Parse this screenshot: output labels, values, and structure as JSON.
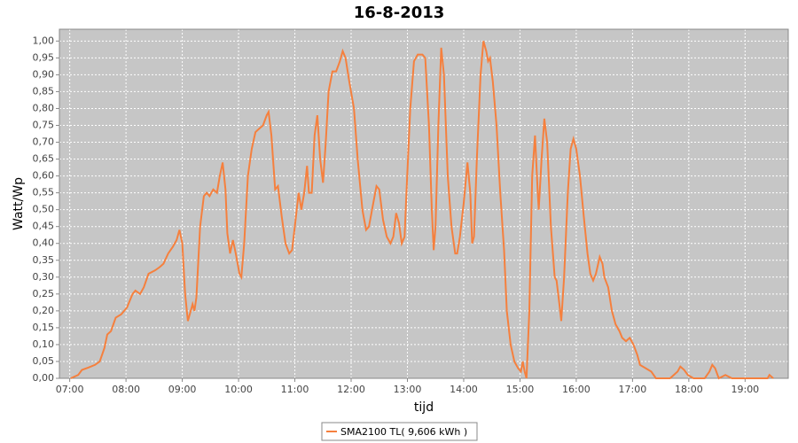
{
  "chart_data": {
    "type": "line",
    "title": "16-8-2013",
    "x_label": "tijd",
    "y_label": "Watt/Wp",
    "x": [
      "07:01",
      "07:09",
      "07:13",
      "07:20",
      "07:27",
      "07:32",
      "07:37",
      "07:40",
      "07:44",
      "07:49",
      "07:55",
      "08:01",
      "08:07",
      "08:10",
      "08:15",
      "08:19",
      "08:24",
      "08:31",
      "08:36",
      "08:40",
      "08:45",
      "08:50",
      "08:54",
      "08:57",
      "09:00",
      "09:03",
      "09:06",
      "09:09",
      "09:11",
      "09:13",
      "09:15",
      "09:19",
      "09:23",
      "09:26",
      "09:29",
      "09:33",
      "09:37",
      "09:40",
      "09:43",
      "09:46",
      "09:48",
      "09:51",
      "09:54",
      "09:57",
      "10:01",
      "10:03",
      "10:06",
      "10:10",
      "10:14",
      "10:18",
      "10:22",
      "10:26",
      "10:30",
      "10:32",
      "10:35",
      "10:39",
      "10:42",
      "10:46",
      "10:50",
      "10:54",
      "10:57",
      "11:00",
      "11:04",
      "11:07",
      "11:10",
      "11:13",
      "11:15",
      "11:18",
      "11:21",
      "11:24",
      "11:27",
      "11:30",
      "11:33",
      "11:36",
      "11:40",
      "11:44",
      "11:48",
      "11:51",
      "11:54",
      "11:58",
      "12:03",
      "12:07",
      "12:12",
      "12:16",
      "12:19",
      "12:23",
      "12:27",
      "12:30",
      "12:34",
      "12:38",
      "12:42",
      "12:45",
      "12:48",
      "12:51",
      "12:54",
      "12:57",
      "12:59",
      "13:03",
      "13:07",
      "13:11",
      "13:16",
      "13:19",
      "13:23",
      "13:26",
      "13:28",
      "13:30",
      "13:33",
      "13:36",
      "13:39",
      "13:43",
      "13:47",
      "13:51",
      "13:53",
      "13:56",
      "14:00",
      "14:04",
      "14:07",
      "14:09",
      "14:11",
      "14:14",
      "14:18",
      "14:21",
      "14:24",
      "14:26",
      "14:28",
      "14:31",
      "14:35",
      "14:39",
      "14:43",
      "14:46",
      "14:50",
      "14:54",
      "14:58",
      "15:01",
      "15:03",
      "15:05",
      "15:07",
      "15:10",
      "15:13",
      "15:16",
      "15:19",
      "15:20",
      "15:23",
      "15:26",
      "15:29",
      "15:33",
      "15:37",
      "15:39",
      "15:42",
      "15:44",
      "15:47",
      "15:51",
      "15:54",
      "15:57",
      "16:00",
      "16:04",
      "16:08",
      "16:12",
      "16:15",
      "16:18",
      "16:21",
      "16:25",
      "16:28",
      "16:30",
      "16:34",
      "16:38",
      "16:42",
      "16:46",
      "16:49",
      "16:53",
      "16:57",
      "17:01",
      "17:05",
      "17:08",
      "17:14",
      "17:20",
      "17:25",
      "17:40",
      "17:44",
      "17:48",
      "17:51",
      "17:55",
      "17:59",
      "18:05",
      "18:17",
      "18:22",
      "18:25",
      "18:28",
      "18:32",
      "18:39",
      "18:46",
      "19:24",
      "19:26",
      "19:30"
    ],
    "series": [
      {
        "name": "SMA2100 TL( 9,606 kWh )",
        "color": "#f5803e",
        "values": [
          0,
          0.01,
          0.025,
          0.032,
          0.04,
          0.05,
          0.09,
          0.13,
          0.14,
          0.18,
          0.19,
          0.21,
          0.25,
          0.26,
          0.25,
          0.27,
          0.31,
          0.32,
          0.33,
          0.34,
          0.37,
          0.39,
          0.41,
          0.44,
          0.4,
          0.25,
          0.17,
          0.2,
          0.22,
          0.2,
          0.24,
          0.45,
          0.54,
          0.55,
          0.54,
          0.56,
          0.55,
          0.6,
          0.64,
          0.56,
          0.43,
          0.37,
          0.41,
          0.37,
          0.31,
          0.3,
          0.4,
          0.6,
          0.68,
          0.73,
          0.74,
          0.75,
          0.78,
          0.79,
          0.72,
          0.56,
          0.57,
          0.48,
          0.4,
          0.37,
          0.38,
          0.45,
          0.55,
          0.5,
          0.55,
          0.63,
          0.55,
          0.55,
          0.72,
          0.78,
          0.65,
          0.58,
          0.7,
          0.85,
          0.91,
          0.91,
          0.94,
          0.97,
          0.95,
          0.88,
          0.8,
          0.65,
          0.5,
          0.44,
          0.45,
          0.51,
          0.57,
          0.56,
          0.47,
          0.42,
          0.4,
          0.42,
          0.49,
          0.46,
          0.4,
          0.42,
          0.55,
          0.8,
          0.94,
          0.96,
          0.96,
          0.95,
          0.75,
          0.5,
          0.38,
          0.45,
          0.75,
          0.98,
          0.9,
          0.6,
          0.45,
          0.37,
          0.37,
          0.42,
          0.52,
          0.64,
          0.55,
          0.4,
          0.42,
          0.65,
          0.9,
          1.0,
          0.97,
          0.94,
          0.95,
          0.88,
          0.75,
          0.55,
          0.38,
          0.2,
          0.1,
          0.05,
          0.03,
          0.02,
          0.05,
          0.02,
          0,
          0.2,
          0.6,
          0.72,
          0.55,
          0.5,
          0.65,
          0.77,
          0.7,
          0.45,
          0.3,
          0.29,
          0.22,
          0.17,
          0.3,
          0.55,
          0.68,
          0.71,
          0.68,
          0.6,
          0.48,
          0.37,
          0.31,
          0.29,
          0.31,
          0.36,
          0.34,
          0.3,
          0.27,
          0.2,
          0.16,
          0.14,
          0.12,
          0.11,
          0.12,
          0.1,
          0.07,
          0.04,
          0.03,
          0.02,
          0,
          0,
          0.01,
          0.02,
          0.035,
          0.025,
          0.01,
          0,
          0,
          0.02,
          0.04,
          0.03,
          0,
          0.01,
          0,
          0,
          0.01,
          0
        ]
      }
    ],
    "xlim": [
      "06:49",
      "19:46"
    ],
    "xticks": [
      "07:00",
      "08:00",
      "09:00",
      "10:00",
      "11:00",
      "12:00",
      "13:00",
      "14:00",
      "15:00",
      "16:00",
      "17:00",
      "18:00",
      "19:00"
    ],
    "ylim": [
      0,
      1.035
    ],
    "yticks": [
      {
        "value": 0,
        "label": "0,00"
      },
      {
        "value": 0.05,
        "label": "0,05"
      },
      {
        "value": 0.1,
        "label": "0,10"
      },
      {
        "value": 0.15,
        "label": "0,15"
      },
      {
        "value": 0.2,
        "label": "0,20"
      },
      {
        "value": 0.25,
        "label": "0,25"
      },
      {
        "value": 0.3,
        "label": "0,30"
      },
      {
        "value": 0.35,
        "label": "0,35"
      },
      {
        "value": 0.4,
        "label": "0,40"
      },
      {
        "value": 0.45,
        "label": "0,45"
      },
      {
        "value": 0.5,
        "label": "0,50"
      },
      {
        "value": 0.55,
        "label": "0,55"
      },
      {
        "value": 0.6,
        "label": "0,60"
      },
      {
        "value": 0.65,
        "label": "0,65"
      },
      {
        "value": 0.7,
        "label": "0,70"
      },
      {
        "value": 0.75,
        "label": "0,75"
      },
      {
        "value": 0.8,
        "label": "0,80"
      },
      {
        "value": 0.85,
        "label": "0,85"
      },
      {
        "value": 0.9,
        "label": "0,90"
      },
      {
        "value": 0.95,
        "label": "0,95"
      },
      {
        "value": 1,
        "label": "1,00"
      }
    ],
    "grid": true,
    "legend": "bottom"
  }
}
